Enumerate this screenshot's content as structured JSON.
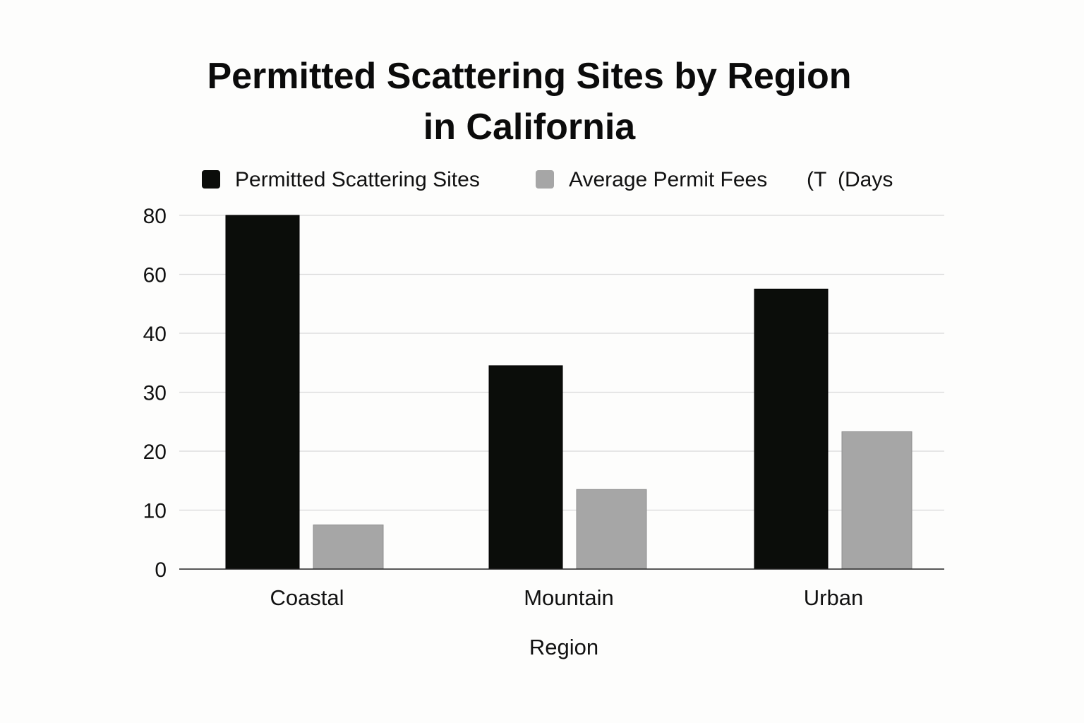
{
  "title_lines": [
    "Permitted Scattering Sites by Region",
    "in California"
  ],
  "chart_data": {
    "type": "bar",
    "title": "Permitted Scattering Sites by Region in California",
    "categories": [
      "Coastal",
      "Mountain",
      "Urban"
    ],
    "series": [
      {
        "name": "Permitted Scattering Sites",
        "color": "#0b0d0a",
        "values": [
          80,
          34.5,
          55
        ]
      },
      {
        "name": "Average Permit Fees",
        "color": "#a6a6a6",
        "values": [
          7.5,
          13.5,
          23.3
        ]
      }
    ],
    "legend_extra": [
      "(T",
      "(Days"
    ],
    "xlabel": "Region",
    "ylabel": "",
    "y_ticks": [
      0,
      10,
      20,
      30,
      40,
      60,
      80
    ],
    "ylim": [
      0,
      80
    ],
    "grid": true,
    "legend_position": "top"
  }
}
